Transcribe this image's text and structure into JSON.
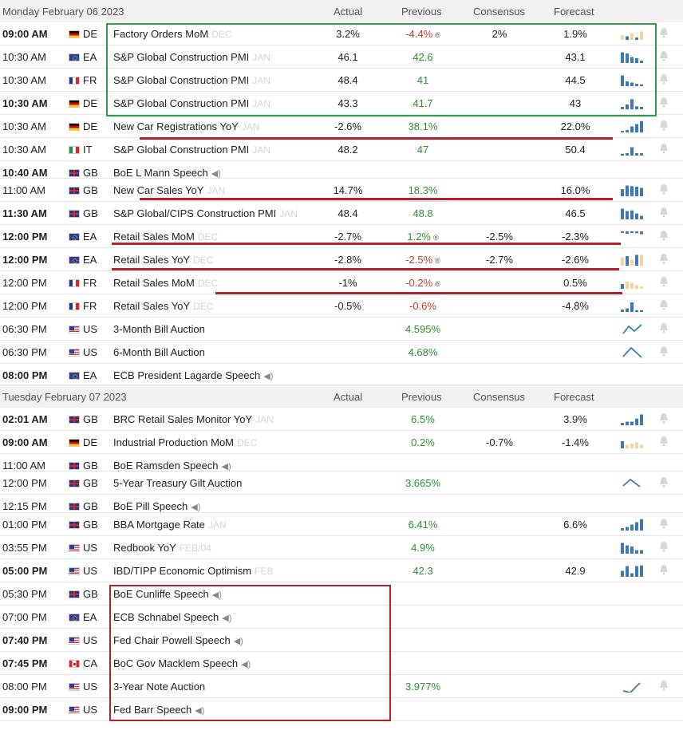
{
  "headers": [
    {
      "date": "Monday February 06 2023",
      "actual": "Actual",
      "previous": "Previous",
      "consensus": "Consensus",
      "forecast": "Forecast"
    },
    {
      "date": "Tuesday February 07 2023",
      "actual": "Actual",
      "previous": "Previous",
      "consensus": "Consensus",
      "forecast": "Forecast"
    }
  ],
  "colors": {
    "up": "#2f8f2f",
    "down": "#c0392b",
    "bar": "#3f79b4",
    "bar_light": "#f5d49a",
    "green_box": "#2e9e4a",
    "red_mark": "#b5212b"
  },
  "rows": [
    {
      "time": "09:00 AM",
      "bold": true,
      "flag": "de",
      "cc": "DE",
      "event": "Factory Orders MoM",
      "period": "DEC",
      "speech": false,
      "actual": "3.2%",
      "previous": "-4.4%",
      "prev_dir": "dn",
      "prev_rev": true,
      "consensus": "2%",
      "forecast": "1.9%",
      "spark": "bars-light",
      "spark_vals": [
        0.4,
        0.3,
        0.55,
        0.2,
        0.7
      ]
    },
    {
      "time": "10:30 AM",
      "bold": false,
      "flag": "ea",
      "cc": "EA",
      "event": "S&P Global Construction PMI",
      "period": "JAN",
      "speech": false,
      "actual": "46.1",
      "previous": "42.6",
      "prev_dir": "up",
      "prev_rev": false,
      "consensus": "",
      "forecast": "43.1",
      "spark": "bars",
      "spark_vals": [
        0.9,
        0.8,
        0.5,
        0.4,
        0.2
      ]
    },
    {
      "time": "10:30 AM",
      "bold": false,
      "flag": "fr",
      "cc": "FR",
      "event": "S&P Global Construction PMI",
      "period": "JAN",
      "speech": false,
      "actual": "48.4",
      "previous": "41",
      "prev_dir": "up",
      "prev_rev": false,
      "consensus": "",
      "forecast": "44.5",
      "spark": "bars",
      "spark_vals": [
        0.9,
        0.4,
        0.3,
        0.2,
        0.15
      ]
    },
    {
      "time": "10:30 AM",
      "bold": true,
      "flag": "de",
      "cc": "DE",
      "event": "S&P Global Construction PMI",
      "period": "JAN",
      "speech": false,
      "actual": "43.3",
      "previous": "41.7",
      "prev_dir": "up",
      "prev_rev": false,
      "consensus": "",
      "forecast": "43",
      "spark": "bars",
      "spark_vals": [
        0.2,
        0.4,
        0.85,
        0.25,
        0.2
      ]
    },
    {
      "time": "10:30 AM",
      "bold": false,
      "flag": "de",
      "cc": "DE",
      "event": "New Car Registrations YoY",
      "period": "JAN",
      "speech": false,
      "actual": "-2.6%",
      "previous": "38.1%",
      "prev_dir": "up",
      "prev_rev": false,
      "consensus": "",
      "forecast": "22.0%",
      "spark": "bars",
      "spark_vals": [
        0.1,
        0.2,
        0.5,
        0.7,
        0.95
      ]
    },
    {
      "time": "10:30 AM",
      "bold": false,
      "flag": "it",
      "cc": "IT",
      "event": "S&P Global Construction PMI",
      "period": "JAN",
      "speech": false,
      "actual": "48.2",
      "previous": "47",
      "prev_dir": "up",
      "prev_rev": false,
      "consensus": "",
      "forecast": "50.4",
      "spark": "bars",
      "spark_vals": [
        0.15,
        0.2,
        0.7,
        0.2,
        0.2
      ]
    },
    {
      "time": "10:40 AM",
      "bold": true,
      "flag": "gb",
      "cc": "GB",
      "event": "BoE L Mann Speech",
      "period": "",
      "speech": true,
      "actual": "",
      "previous": "",
      "prev_dir": "",
      "prev_rev": false,
      "consensus": "",
      "forecast": "",
      "spark": "none",
      "spark_vals": []
    },
    {
      "time": "11:00 AM",
      "bold": false,
      "flag": "gb",
      "cc": "GB",
      "event": "New Car Sales YoY",
      "period": "JAN",
      "speech": false,
      "actual": "14.7%",
      "previous": "18.3%",
      "prev_dir": "up",
      "prev_rev": false,
      "consensus": "",
      "forecast": "16.0%",
      "spark": "bars",
      "spark_vals": [
        0.6,
        0.9,
        0.85,
        0.8,
        0.7
      ]
    },
    {
      "time": "11:30 AM",
      "bold": true,
      "flag": "gb",
      "cc": "GB",
      "event": "S&P Global/CIPS Construction PMI",
      "period": "JAN",
      "speech": false,
      "actual": "48.4",
      "previous": "48.8",
      "prev_dir": "up",
      "prev_rev": false,
      "consensus": "",
      "forecast": "46.5",
      "spark": "bars",
      "spark_vals": [
        0.9,
        0.7,
        0.75,
        0.5,
        0.3
      ]
    },
    {
      "time": "12:00 PM",
      "bold": true,
      "flag": "ea",
      "cc": "EA",
      "event": "Retail Sales MoM",
      "period": "DEC",
      "speech": false,
      "actual": "-2.7%",
      "previous": "1.2%",
      "prev_dir": "up",
      "prev_rev": true,
      "consensus": "-2.5%",
      "forecast": "-2.3%",
      "spark": "bars-top",
      "spark_vals": [
        0.3,
        0.5,
        0.2,
        0.4,
        0.6
      ]
    },
    {
      "time": "12:00 PM",
      "bold": true,
      "flag": "ea",
      "cc": "EA",
      "event": "Retail Sales YoY",
      "period": "DEC",
      "speech": false,
      "actual": "-2.8%",
      "previous": "-2.5%",
      "prev_dir": "dn",
      "prev_rev": true,
      "consensus": "-2.7%",
      "forecast": "-2.6%",
      "spark": "bars-light",
      "spark_vals": [
        0.7,
        0.8,
        0.5,
        0.9,
        0.9
      ]
    },
    {
      "time": "12:00 PM",
      "bold": false,
      "flag": "fr",
      "cc": "FR",
      "event": "Retail Sales MoM",
      "period": "DEC",
      "speech": false,
      "actual": "-1%",
      "previous": "-0.2%",
      "prev_dir": "dn",
      "prev_rev": true,
      "consensus": "",
      "forecast": "0.5%",
      "spark": "bars-mixed",
      "spark_vals": [
        0.4,
        0.6,
        0.5,
        0.3,
        0.2
      ]
    },
    {
      "time": "12:00 PM",
      "bold": false,
      "flag": "fr",
      "cc": "FR",
      "event": "Retail Sales YoY",
      "period": "DEC",
      "speech": false,
      "actual": "-0.5%",
      "previous": "-0.6%",
      "prev_dir": "dn",
      "prev_rev": false,
      "consensus": "",
      "forecast": "-4.8%",
      "spark": "bars",
      "spark_vals": [
        0.2,
        0.3,
        0.8,
        0.15,
        0.15
      ]
    },
    {
      "time": "06:30 PM",
      "bold": false,
      "flag": "us",
      "cc": "US",
      "event": "3-Month Bill Auction",
      "period": "",
      "speech": false,
      "actual": "",
      "previous": "4.595%",
      "prev_dir": "up",
      "prev_rev": false,
      "consensus": "",
      "forecast": "",
      "spark": "line1",
      "spark_vals": []
    },
    {
      "time": "06:30 PM",
      "bold": false,
      "flag": "us",
      "cc": "US",
      "event": "6-Month Bill Auction",
      "period": "",
      "speech": false,
      "actual": "",
      "previous": "4.68%",
      "prev_dir": "up",
      "prev_rev": false,
      "consensus": "",
      "forecast": "",
      "spark": "line2",
      "spark_vals": []
    },
    {
      "time": "08:00 PM",
      "bold": true,
      "flag": "ea",
      "cc": "EA",
      "event": "ECB President Lagarde Speech",
      "period": "",
      "speech": true,
      "actual": "",
      "previous": "",
      "prev_dir": "",
      "prev_rev": false,
      "consensus": "",
      "forecast": "",
      "spark": "none",
      "spark_vals": []
    },
    {
      "header": 1
    },
    {
      "time": "02:01 AM",
      "bold": true,
      "flag": "gb",
      "cc": "GB",
      "event": "BRC Retail Sales Monitor YoY",
      "period": "JAN",
      "speech": false,
      "actual": "",
      "previous": "6.5%",
      "prev_dir": "up",
      "prev_rev": false,
      "consensus": "",
      "forecast": "3.9%",
      "spark": "bars",
      "spark_vals": [
        0.2,
        0.3,
        0.3,
        0.55,
        0.9
      ]
    },
    {
      "time": "09:00 AM",
      "bold": true,
      "flag": "de",
      "cc": "DE",
      "event": "Industrial Production MoM",
      "period": "DEC",
      "speech": false,
      "actual": "",
      "previous": "0.2%",
      "prev_dir": "up",
      "prev_rev": false,
      "consensus": "-0.7%",
      "forecast": "-1.4%",
      "spark": "bars-mixed",
      "spark_vals": [
        0.6,
        0.3,
        0.4,
        0.5,
        0.3
      ]
    },
    {
      "time": "11:00 AM",
      "bold": false,
      "flag": "gb",
      "cc": "GB",
      "event": "BoE Ramsden Speech",
      "period": "",
      "speech": true,
      "actual": "",
      "previous": "",
      "prev_dir": "",
      "prev_rev": false,
      "consensus": "",
      "forecast": "",
      "spark": "none",
      "spark_vals": []
    },
    {
      "time": "12:00 PM",
      "bold": false,
      "flag": "gb",
      "cc": "GB",
      "event": "5-Year Treasury Gilt Auction",
      "period": "",
      "speech": false,
      "actual": "",
      "previous": "3.665%",
      "prev_dir": "up",
      "prev_rev": false,
      "consensus": "",
      "forecast": "",
      "spark": "line3",
      "spark_vals": []
    },
    {
      "time": "12:15 PM",
      "bold": false,
      "flag": "gb",
      "cc": "GB",
      "event": "BoE Pill Speech",
      "period": "",
      "speech": true,
      "actual": "",
      "previous": "",
      "prev_dir": "",
      "prev_rev": false,
      "consensus": "",
      "forecast": "",
      "spark": "none",
      "spark_vals": []
    },
    {
      "time": "01:00 PM",
      "bold": false,
      "flag": "gb",
      "cc": "GB",
      "event": "BBA Mortgage Rate",
      "period": "JAN",
      "speech": false,
      "actual": "",
      "previous": "6.41%",
      "prev_dir": "up",
      "prev_rev": false,
      "consensus": "",
      "forecast": "6.6%",
      "spark": "bars",
      "spark_vals": [
        0.2,
        0.3,
        0.5,
        0.7,
        0.95
      ]
    },
    {
      "time": "03:55 PM",
      "bold": false,
      "flag": "us",
      "cc": "US",
      "event": "Redbook YoY",
      "period": "FEB/04",
      "speech": false,
      "actual": "",
      "previous": "4.9%",
      "prev_dir": "up",
      "prev_rev": false,
      "consensus": "",
      "forecast": "",
      "spark": "bars",
      "spark_vals": [
        0.9,
        0.7,
        0.6,
        0.3,
        0.3
      ]
    },
    {
      "time": "05:00 PM",
      "bold": true,
      "flag": "us",
      "cc": "US",
      "event": "IBD/TIPP Economic Optimism",
      "period": "FEB",
      "speech": false,
      "actual": "",
      "previous": "42.3",
      "prev_dir": "up",
      "prev_rev": false,
      "consensus": "",
      "forecast": "42.9",
      "spark": "bars",
      "spark_vals": [
        0.5,
        0.9,
        0.3,
        0.9,
        0.95
      ]
    },
    {
      "time": "05:30 PM",
      "bold": false,
      "flag": "gb",
      "cc": "GB",
      "event": "BoE Cunliffe Speech",
      "period": "",
      "speech": true,
      "actual": "",
      "previous": "",
      "prev_dir": "",
      "prev_rev": false,
      "consensus": "",
      "forecast": "",
      "spark": "none",
      "spark_vals": []
    },
    {
      "time": "07:00 PM",
      "bold": false,
      "flag": "ea",
      "cc": "EA",
      "event": "ECB Schnabel Speech",
      "period": "",
      "speech": true,
      "actual": "",
      "previous": "",
      "prev_dir": "",
      "prev_rev": false,
      "consensus": "",
      "forecast": "",
      "spark": "none",
      "spark_vals": []
    },
    {
      "time": "07:40 PM",
      "bold": true,
      "flag": "us",
      "cc": "US",
      "event": "Fed Chair Powell Speech",
      "period": "",
      "speech": true,
      "actual": "",
      "previous": "",
      "prev_dir": "",
      "prev_rev": false,
      "consensus": "",
      "forecast": "",
      "spark": "none",
      "spark_vals": []
    },
    {
      "time": "07:45 PM",
      "bold": true,
      "flag": "ca",
      "cc": "CA",
      "event": "BoC Gov Macklem Speech",
      "period": "",
      "speech": true,
      "actual": "",
      "previous": "",
      "prev_dir": "",
      "prev_rev": false,
      "consensus": "",
      "forecast": "",
      "spark": "none",
      "spark_vals": []
    },
    {
      "time": "08:00 PM",
      "bold": false,
      "flag": "us",
      "cc": "US",
      "event": "3-Year Note Auction",
      "period": "",
      "speech": false,
      "actual": "",
      "previous": "3.977%",
      "prev_dir": "up",
      "prev_rev": false,
      "consensus": "",
      "forecast": "",
      "spark": "line4",
      "spark_vals": []
    },
    {
      "time": "09:00 PM",
      "bold": true,
      "flag": "us",
      "cc": "US",
      "event": "Fed Barr Speech",
      "period": "",
      "speech": true,
      "actual": "",
      "previous": "",
      "prev_dir": "",
      "prev_rev": false,
      "consensus": "",
      "forecast": "",
      "spark": "none",
      "spark_vals": []
    }
  ]
}
